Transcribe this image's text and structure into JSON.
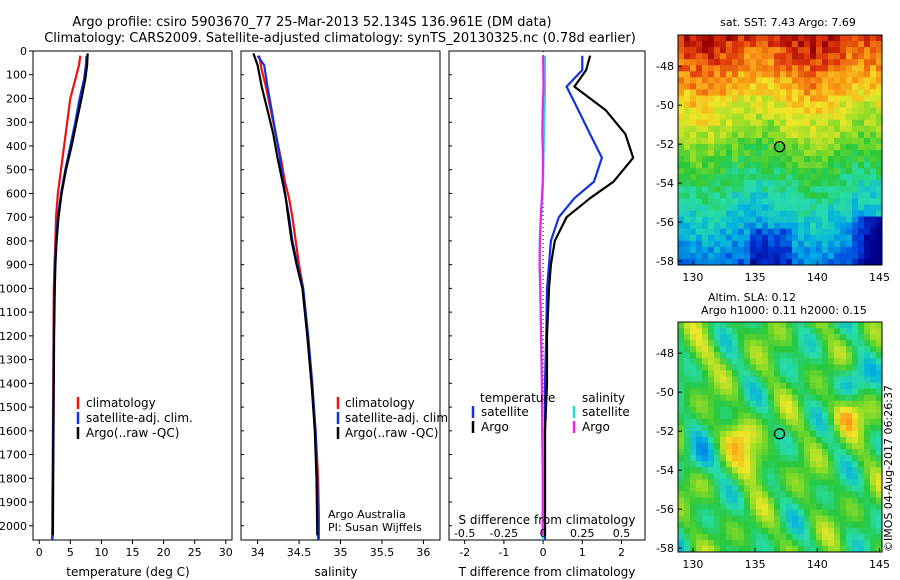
{
  "header": {
    "line1": "Argo profile: csiro 5903670_77 25-Mar-2013 52.134S 136.961E (DM data)",
    "line2": "Climatology: CARS2009. Satellite-adjusted climatology: synTS_20130325.nc (0.78d earlier)"
  },
  "colors": {
    "climatology": "#ee1111",
    "satellite": "#1133dd",
    "argo": "#000000",
    "sat_salinity": "#22dddd",
    "argo_salinity": "#ee22ee"
  },
  "chart_data": [
    {
      "id": "temperature",
      "type": "line",
      "xlabel": "temperature (deg C)",
      "ylabel": "",
      "xlim": [
        -1,
        31
      ],
      "ylim": [
        2060,
        0
      ],
      "xticks": [
        "0",
        "5",
        "10",
        "15",
        "20",
        "25",
        "30"
      ],
      "xtick_values": [
        0,
        5,
        10,
        15,
        20,
        25,
        30
      ],
      "yticks": [
        "0",
        "100",
        "200",
        "300",
        "400",
        "500",
        "600",
        "700",
        "800",
        "900",
        "1000",
        "1100",
        "1200",
        "1300",
        "1400",
        "1500",
        "1600",
        "1700",
        "1800",
        "1900",
        "2000"
      ],
      "ytick_values": [
        0,
        100,
        200,
        300,
        400,
        500,
        600,
        700,
        800,
        900,
        1000,
        1100,
        1200,
        1300,
        1400,
        1500,
        1600,
        1700,
        1800,
        1900,
        2000
      ],
      "legend": [
        "climatology",
        "satellite-adj. clim.",
        "Argo(..raw -QC)"
      ],
      "series": [
        {
          "name": "climatology",
          "x": [
            6.6,
            6.4,
            5.8,
            5.0,
            4.5,
            4.0,
            3.5,
            3.0,
            2.7,
            2.6,
            2.45,
            2.35,
            2.3,
            2.25,
            2.2,
            2.15,
            2.1,
            2.1,
            2.05
          ],
          "y": [
            20,
            60,
            120,
            200,
            300,
            400,
            500,
            600,
            700,
            800,
            900,
            1000,
            1200,
            1400,
            1600,
            1800,
            1900,
            2000,
            2060
          ]
        },
        {
          "name": "satellite-adj. clim.",
          "x": [
            7.6,
            7.5,
            7.2,
            6.5,
            5.8,
            5.0,
            4.2,
            3.5,
            3.0,
            2.7,
            2.55,
            2.45,
            2.35,
            2.3,
            2.25,
            2.2,
            2.15,
            2.15
          ],
          "y": [
            20,
            60,
            120,
            200,
            300,
            400,
            500,
            600,
            700,
            800,
            900,
            1000,
            1200,
            1400,
            1600,
            1800,
            2000,
            2060
          ]
        },
        {
          "name": "Argo(..raw -QC)",
          "x": [
            7.8,
            7.7,
            7.4,
            6.8,
            6.0,
            5.2,
            4.3,
            3.6,
            3.1,
            2.8,
            2.6,
            2.5,
            2.4,
            2.35,
            2.3,
            2.25,
            2.2
          ],
          "y": [
            10,
            60,
            120,
            200,
            300,
            400,
            500,
            600,
            700,
            800,
            900,
            1000,
            1200,
            1400,
            1600,
            1800,
            2040
          ]
        }
      ]
    },
    {
      "id": "salinity",
      "type": "line",
      "xlabel": "salinity",
      "ylabel": "",
      "xlim": [
        33.8,
        36.2
      ],
      "ylim": [
        2060,
        0
      ],
      "xticks": [
        "34",
        "34.5",
        "35",
        "35.5",
        "36"
      ],
      "xtick_values": [
        34,
        34.5,
        35,
        35.5,
        36
      ],
      "legend": [
        "climatology",
        "satellite-adj. clim.",
        "Argo(..raw -QC)"
      ],
      "annotation": [
        "Argo Australia",
        "PI: Susan Wijffels"
      ],
      "series": [
        {
          "name": "climatology",
          "x": [
            34.02,
            34.05,
            34.1,
            34.16,
            34.22,
            34.28,
            34.33,
            34.38,
            34.42,
            34.46,
            34.5,
            34.55,
            34.6,
            34.65,
            34.7,
            34.73,
            34.74,
            34.74
          ],
          "y": [
            20,
            80,
            150,
            250,
            350,
            450,
            550,
            620,
            700,
            800,
            900,
            1000,
            1200,
            1400,
            1600,
            1800,
            1950,
            2060
          ]
        },
        {
          "name": "satellite-adj. clim.",
          "x": [
            34.0,
            34.08,
            34.12,
            34.17,
            34.22,
            34.27,
            34.31,
            34.34,
            34.38,
            34.42,
            34.48,
            34.55,
            34.61,
            34.66,
            34.7,
            34.72,
            34.73
          ],
          "y": [
            20,
            60,
            150,
            250,
            350,
            450,
            550,
            620,
            700,
            800,
            900,
            1000,
            1200,
            1400,
            1600,
            1800,
            2060
          ]
        },
        {
          "name": "Argo(..raw -QC)",
          "x": [
            33.95,
            34.0,
            34.05,
            34.12,
            34.19,
            34.24,
            34.3,
            34.34,
            34.37,
            34.41,
            34.47,
            34.54,
            34.6,
            34.65,
            34.69,
            34.71,
            34.72
          ],
          "y": [
            10,
            60,
            150,
            250,
            350,
            450,
            550,
            620,
            700,
            800,
            900,
            1000,
            1200,
            1400,
            1600,
            1800,
            2040
          ]
        }
      ]
    },
    {
      "id": "differences",
      "type": "line",
      "xlabel": "T difference from climatology",
      "ylabel": "",
      "top_xlabel": "S difference from climatology",
      "xlim": [
        -2.4,
        2.6
      ],
      "ylim": [
        2060,
        0
      ],
      "xticks": [
        "-2",
        "-1",
        "0",
        "1",
        "2"
      ],
      "xtick_values": [
        -2,
        -1,
        0,
        1,
        2
      ],
      "sticks": [
        "-0.5",
        "-0.25",
        "0",
        "0.25",
        "0.5"
      ],
      "stick_values": [
        -0.5,
        -0.25,
        0,
        0.25,
        0.5
      ],
      "stick_scale": 4,
      "legend_temperature": [
        "temperature",
        "satellite",
        "Argo"
      ],
      "legend_salinity": [
        "salinity",
        "satellite",
        "Argo"
      ],
      "series": [
        {
          "name": "satellite",
          "x": [
            1.0,
            1.0,
            0.6,
            0.9,
            1.2,
            1.5,
            1.3,
            0.8,
            0.4,
            0.2,
            0.15,
            0.1,
            0.08,
            0.05,
            0.05,
            0.05,
            0.05
          ],
          "y": [
            20,
            80,
            150,
            250,
            350,
            450,
            550,
            620,
            700,
            800,
            900,
            1000,
            1200,
            1400,
            1600,
            1800,
            2060
          ]
        },
        {
          "name": "Argo",
          "x": [
            1.2,
            1.1,
            0.8,
            1.6,
            2.1,
            2.3,
            1.8,
            1.2,
            0.6,
            0.3,
            0.2,
            0.15,
            0.1,
            0.1,
            0.05,
            0.05,
            0.05
          ],
          "y": [
            20,
            80,
            150,
            250,
            350,
            450,
            550,
            620,
            700,
            800,
            900,
            1000,
            1200,
            1400,
            1600,
            1800,
            2040
          ]
        },
        {
          "name": "satellite (salinity)",
          "x": [
            0.05,
            0.05,
            0.04,
            0.02,
            0.01,
            0.0,
            -0.02,
            -0.05,
            -0.08,
            -0.09,
            -0.07,
            -0.05,
            -0.03,
            -0.02,
            -0.01,
            -0.01
          ],
          "y": [
            20,
            150,
            250,
            350,
            450,
            550,
            620,
            700,
            800,
            900,
            1000,
            1200,
            1400,
            1600,
            1800,
            2060
          ]
        },
        {
          "name": "Argo (salinity)",
          "x": [
            0.0,
            0.01,
            -0.01,
            -0.02,
            0.0,
            -0.01,
            -0.03,
            -0.06,
            -0.08,
            -0.09,
            -0.07,
            -0.05,
            -0.03,
            -0.02,
            -0.01,
            -0.01
          ],
          "y": [
            20,
            150,
            250,
            350,
            450,
            550,
            620,
            700,
            800,
            900,
            1000,
            1200,
            1400,
            1600,
            1800,
            2040
          ]
        }
      ]
    },
    {
      "id": "sst_map",
      "type": "heatmap",
      "title": "sat. SST: 7.43 Argo: 7.69",
      "xlim": [
        128.8,
        145.2
      ],
      "ylim": [
        -58.2,
        -46.4
      ],
      "xticks": [
        "130",
        "135",
        "140",
        "145"
      ],
      "xtick_values": [
        130,
        135,
        140,
        145
      ],
      "yticks": [
        "-48",
        "-50",
        "-52",
        "-54",
        "-56",
        "-58"
      ],
      "ytick_values": [
        -48,
        -50,
        -52,
        -54,
        -56,
        -58
      ],
      "marker": {
        "lon": 136.961,
        "lat": -52.134
      }
    },
    {
      "id": "sla_map",
      "type": "heatmap",
      "title": "Altim. SLA: 0.12",
      "subtitle": "Argo h1000: 0.11 h2000: 0.15",
      "xlim": [
        128.8,
        145.2
      ],
      "ylim": [
        -58.2,
        -46.4
      ],
      "xticks": [
        "130",
        "135",
        "140",
        "145"
      ],
      "xtick_values": [
        130,
        135,
        140,
        145
      ],
      "yticks": [
        "-48",
        "-50",
        "-52",
        "-54",
        "-56",
        "-58"
      ],
      "ytick_values": [
        -48,
        -50,
        -52,
        -54,
        -56,
        -58
      ],
      "marker": {
        "lon": 136.961,
        "lat": -52.134
      }
    }
  ],
  "watermark": "©IMOS 04-Aug-2017 06:26:37"
}
